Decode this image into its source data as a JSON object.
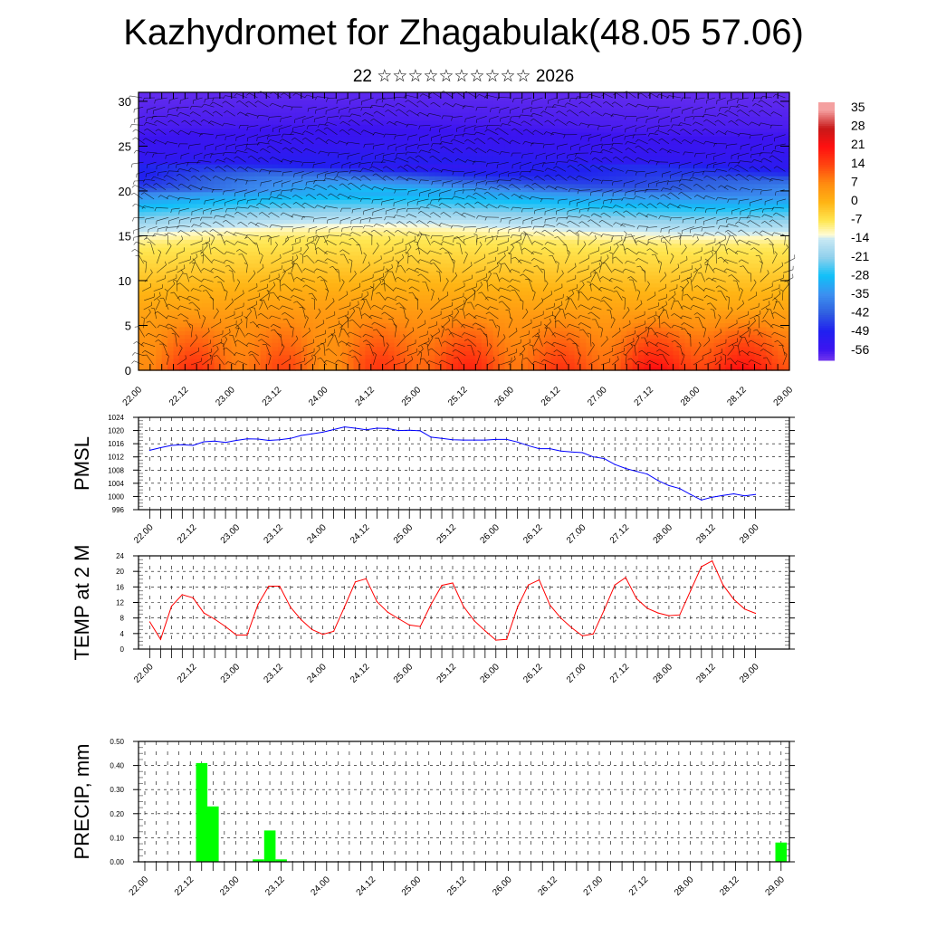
{
  "title": "Kazhydromet for Zhagabulak(48.05 57.06)",
  "subtitle": "22 ☆☆☆☆☆☆☆☆☆☆ 2026",
  "time_labels": [
    "22.00",
    "22.12",
    "23.00",
    "23.12",
    "24.00",
    "24.12",
    "25.00",
    "25.12",
    "26.00",
    "26.12",
    "27.00",
    "27.12",
    "28.00",
    "28.12",
    "29.00"
  ],
  "chart_data": [
    {
      "type": "heatmap",
      "name": "temperature-wind-cross-section",
      "xlabel": "",
      "ylabel": "",
      "ylim": [
        0,
        31
      ],
      "yticks": [
        0,
        5,
        10,
        15,
        20,
        25,
        30
      ],
      "x_steps_hours": 3,
      "x_count": 57,
      "profile_height_km": [
        0,
        2,
        4,
        6,
        8,
        10,
        12,
        14,
        15,
        16,
        18,
        20,
        22,
        24,
        27,
        31
      ],
      "profile_temp_c": [
        11,
        9,
        7,
        4,
        1,
        -2,
        -5,
        -8,
        -12,
        -17,
        -27,
        -38,
        -50,
        -54,
        -57,
        -59
      ],
      "colorbar": {
        "labels": [
          "35",
          "28",
          "21",
          "14",
          "7",
          "0",
          "-7",
          "-14",
          "-21",
          "-28",
          "-35",
          "-42",
          "-49",
          "-56"
        ],
        "range": [
          -60,
          38
        ]
      },
      "colors": {
        "high": "#ff1010",
        "mid": "#ffe040",
        "low": "#2020f0"
      }
    },
    {
      "type": "line",
      "ylabel": "PMSL",
      "ylim": [
        996,
        1024
      ],
      "yticks": [
        "996",
        "1000",
        "1004",
        "1008",
        "1012",
        "1016",
        "1020",
        "1024"
      ],
      "color": "#0000ff",
      "values": [
        1014,
        1014.8,
        1015.5,
        1015.7,
        1015.5,
        1016.6,
        1016.8,
        1016.4,
        1017,
        1017.5,
        1017.4,
        1017,
        1017.2,
        1017.6,
        1018.5,
        1019,
        1019.5,
        1020.3,
        1021.1,
        1020.7,
        1020.2,
        1020.7,
        1020.6,
        1020,
        1020.1,
        1019.9,
        1018,
        1017.6,
        1017.2,
        1017.1,
        1017.1,
        1017.1,
        1017.3,
        1017.3,
        1016.5,
        1015.4,
        1014.5,
        1014.5,
        1013.8,
        1013.5,
        1013.3,
        1012,
        1011.5,
        1009.7,
        1008.5,
        1007.6,
        1006.8,
        1004.8,
        1003.3,
        1002.4,
        1000.6,
        998.9,
        999.8,
        1000.3,
        1000.8,
        1000.2,
        1000.6
      ]
    },
    {
      "type": "line",
      "ylabel": "TEMP at 2 M",
      "ylim": [
        0,
        24
      ],
      "yticks": [
        "0",
        "4",
        "8",
        "12",
        "16",
        "20",
        "24"
      ],
      "color": "#ff0000",
      "values": [
        7,
        2.5,
        11,
        14,
        13.2,
        9.3,
        7.7,
        5.8,
        3.6,
        3.6,
        11.5,
        16.2,
        16.2,
        10.8,
        7.5,
        5,
        3.8,
        4.6,
        10.8,
        17.3,
        18.1,
        12.2,
        9.5,
        7.8,
        6.2,
        5.8,
        11.5,
        16.4,
        17,
        11,
        7.3,
        4.7,
        2.3,
        2.5,
        10.8,
        16.5,
        17.8,
        11.3,
        8,
        5.5,
        3.4,
        3.9,
        10,
        16.5,
        18.4,
        13,
        10.5,
        9.3,
        8.6,
        8.8,
        15,
        21.2,
        22.7,
        16.5,
        12.8,
        10.3,
        9.2
      ]
    },
    {
      "type": "bar",
      "ylabel": "PRECIP, mm",
      "ylim": [
        0,
        0.5
      ],
      "yticks": [
        "0.00",
        "0.10",
        "0.20",
        "0.30",
        "0.40",
        "0.50"
      ],
      "color": "#00ff00",
      "bars": [
        {
          "index": 5,
          "value": 0.41
        },
        {
          "index": 6,
          "value": 0.23
        },
        {
          "index": 10,
          "value": 0.01
        },
        {
          "index": 11,
          "value": 0.13
        },
        {
          "index": 12,
          "value": 0.01
        },
        {
          "index": 56,
          "value": 0.08
        }
      ]
    }
  ]
}
